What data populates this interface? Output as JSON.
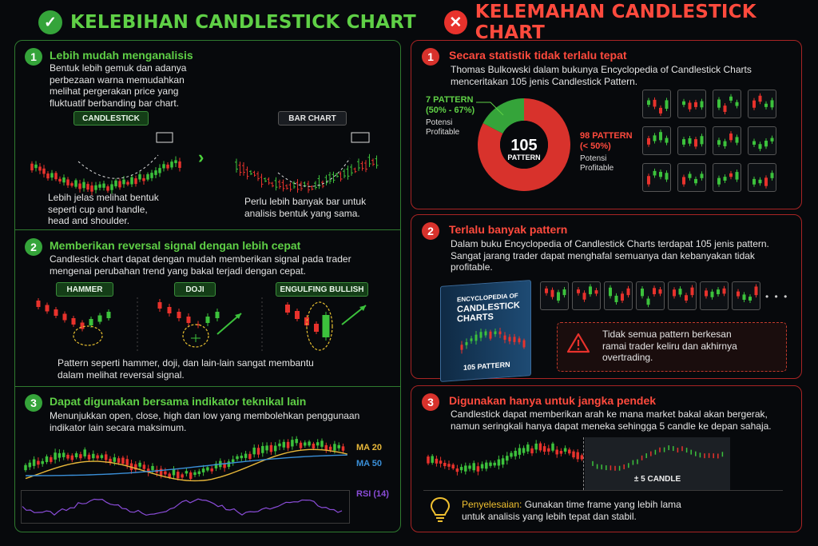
{
  "left": {
    "title": "KELEBIHAN CANDLESTICK CHART",
    "sections": [
      {
        "num": "1",
        "title": "Lebih mudah menganalisis",
        "body": [
          "Bentuk lebih gemuk dan adanya",
          "perbezaan warna memudahkan",
          "melihat pergerakan price yang",
          "fluktuatif berbanding bar chart."
        ],
        "tag1": "CANDLESTICK",
        "tag2": "BAR CHART",
        "caption1": [
          "Lebih jelas melihat bentuk",
          "seperti cup and handle,",
          "head and shoulder."
        ],
        "caption2": [
          "Perlu lebih banyak bar untuk",
          "analisis bentuk yang sama."
        ]
      },
      {
        "num": "2",
        "title": "Memberikan reversal signal dengan lebih cepat",
        "body": [
          "Candlestick chart dapat dengan mudah memberikan signal pada trader",
          "mengenai perubahan trend yang bakal terjadi dengan cepat."
        ],
        "tags": [
          "HAMMER",
          "DOJI",
          "ENGULFING BULLISH"
        ],
        "caption": [
          "Pattern seperti hammer, doji, dan lain-lain sangat membantu",
          "dalam melihat reversal signal."
        ]
      },
      {
        "num": "3",
        "title": "Dapat digunakan bersama indikator teknikal lain",
        "body": [
          "Menunjukkan open, close, high dan low yang membolehkan penggunaan",
          "indikator lain secara maksimum."
        ],
        "ma20": "MA 20",
        "ma50": "MA 50",
        "rsi": "RSI (14)"
      }
    ]
  },
  "right": {
    "title": "KELEMAHAN CANDLESTICK CHART",
    "sections": [
      {
        "num": "1",
        "title": "Secara statistik tidak terlalu tepat",
        "body": [
          "Thomas Bulkowski dalam bukunya Encyclopedia of Candlestick Charts",
          "menceritakan 105 jenis Candlestick Pattern."
        ],
        "donut": {
          "center_value": "105",
          "center_label": "PATTERN",
          "green_label": [
            "7 PATTERN",
            "(50% - 67%)"
          ],
          "green_sub": [
            "Potensi",
            "Profitable"
          ],
          "red_label": [
            "98 PATTERN",
            "(< 50%)"
          ],
          "red_sub": [
            "Potensi",
            "Profitable"
          ],
          "green_count": 7,
          "red_count": 98
        }
      },
      {
        "num": "2",
        "title": "Terlalu banyak pattern",
        "body": [
          "Dalam buku Encyclopedia of Candlestick Charts terdapat 105 jenis pattern.",
          "Sangat jarang trader dapat menghafal semuanya dan kebanyakan tidak",
          "profitable."
        ],
        "book_title": [
          "ENCYCLOPEDIA OF",
          "CANDLESTICK",
          "CHARTS"
        ],
        "book_footer": "105 PATTERN",
        "more": "• • •",
        "warning": [
          "Tidak semua pattern berkesan",
          "ramai trader keliru dan akhirnya",
          "overtrading."
        ]
      },
      {
        "num": "3",
        "title": "Digunakan hanya untuk jangka pendek",
        "body": [
          "Candlestick dapat memberikan arah ke mana market bakal akan bergerak,",
          "namun seringkali hanya dapat meneka sehingga 5 candle ke depan sahaja."
        ],
        "forecast_label": "± 5 CANDLE",
        "solution_label": "Penyelesaian:",
        "solution_text": [
          " Gunakan time frame yang lebih lama",
          "untuk analisis yang lebih tepat dan stabil."
        ]
      }
    ]
  },
  "colors": {
    "green": "#5fd046",
    "red": "#ff4a3d",
    "bull": "#3cc23c",
    "bear": "#e8322c",
    "ma20": "#e8b83a",
    "ma50": "#3a8fd8",
    "rsi": "#8a4cd8"
  }
}
